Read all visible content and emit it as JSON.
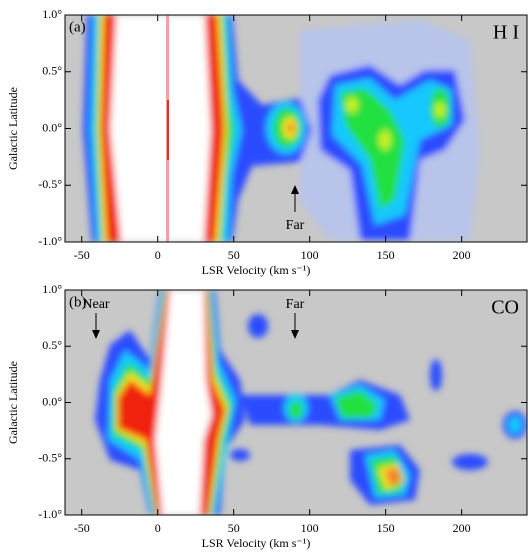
{
  "chart_data": [
    {
      "type": "heatmap",
      "panel_label": "(a)",
      "title": "H I",
      "xlabel": "LSR Velocity (km s⁻¹)",
      "ylabel": "Galactic Latitude",
      "annotations": [
        "Far"
      ],
      "xlim": [
        -61,
        243
      ],
      "ylim": [
        -1.0,
        1.0
      ],
      "xticks": [
        -50,
        0,
        50,
        100,
        150,
        200
      ],
      "yticks": [
        {
          "value": -1.0,
          "label": "-1.0°"
        },
        {
          "value": -0.5,
          "label": "-0.5°"
        },
        {
          "value": 0.0,
          "label": "0.0°"
        },
        {
          "value": 0.5,
          "label": "0.5°"
        },
        {
          "value": 1.0,
          "label": "1.0°"
        }
      ]
    },
    {
      "type": "heatmap",
      "panel_label": "(b)",
      "title": "CO",
      "xlabel": "LSR Velocity (km s⁻¹)",
      "ylabel": "Galactic Latitude",
      "annotations": [
        "Near",
        "Far"
      ],
      "xlim": [
        -61,
        243
      ],
      "ylim": [
        -1.0,
        1.0
      ],
      "xticks": [
        -50,
        0,
        50,
        100,
        150,
        200
      ],
      "yticks": [
        {
          "value": -1.0,
          "label": "-1.0°"
        },
        {
          "value": -0.5,
          "label": "-0.5°"
        },
        {
          "value": 0.0,
          "label": "0.0°"
        },
        {
          "value": 0.5,
          "label": "0.5°"
        },
        {
          "value": 1.0,
          "label": "1.0°"
        }
      ]
    }
  ]
}
